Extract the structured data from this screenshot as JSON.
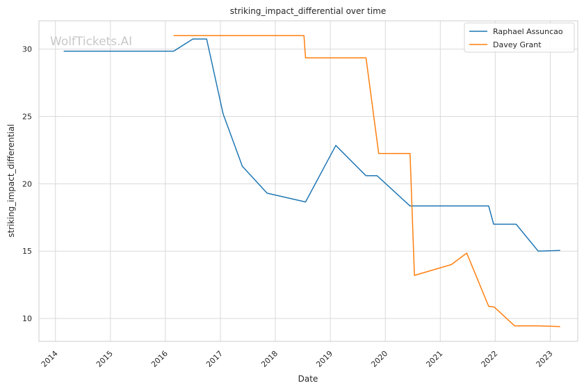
{
  "chart_data": {
    "type": "line",
    "title": "striking_impact_differential over time",
    "xlabel": "Date",
    "ylabel": "striking_impact_differential",
    "watermark": "WolfTickets.AI",
    "xlim": [
      2013.7,
      2023.5
    ],
    "ylim": [
      8.3,
      32.1
    ],
    "x_ticks": [
      2014,
      2015,
      2016,
      2017,
      2018,
      2019,
      2020,
      2021,
      2022,
      2023
    ],
    "x_tick_labels": [
      "2014",
      "2015",
      "2016",
      "2017",
      "2018",
      "2019",
      "2020",
      "2021",
      "2022",
      "2023"
    ],
    "y_ticks": [
      10,
      15,
      20,
      25,
      30
    ],
    "y_tick_labels": [
      "10",
      "15",
      "20",
      "25",
      "30"
    ],
    "grid": true,
    "legend_position": "top-right",
    "series": [
      {
        "name": "Raphael Assuncao",
        "color": "#1f77b4",
        "points": [
          [
            2014.15,
            29.85
          ],
          [
            2016.15,
            29.85
          ],
          [
            2016.5,
            30.75
          ],
          [
            2016.75,
            30.75
          ],
          [
            2017.05,
            25.2
          ],
          [
            2017.4,
            21.3
          ],
          [
            2017.85,
            19.3
          ],
          [
            2018.55,
            18.65
          ],
          [
            2019.1,
            22.85
          ],
          [
            2019.65,
            20.6
          ],
          [
            2019.85,
            20.6
          ],
          [
            2020.45,
            18.35
          ],
          [
            2021.15,
            18.35
          ],
          [
            2021.88,
            18.35
          ],
          [
            2021.97,
            17.0
          ],
          [
            2022.38,
            17.0
          ],
          [
            2022.78,
            15.0
          ],
          [
            2023.18,
            15.05
          ]
        ]
      },
      {
        "name": "Davey Grant",
        "color": "#ff7f0e",
        "points": [
          [
            2016.15,
            31.0
          ],
          [
            2018.52,
            31.0
          ],
          [
            2018.55,
            29.35
          ],
          [
            2019.65,
            29.35
          ],
          [
            2019.88,
            22.25
          ],
          [
            2020.45,
            22.25
          ],
          [
            2020.53,
            13.2
          ],
          [
            2021.2,
            14.0
          ],
          [
            2021.48,
            14.85
          ],
          [
            2021.88,
            10.9
          ],
          [
            2021.98,
            10.85
          ],
          [
            2022.35,
            9.45
          ],
          [
            2022.78,
            9.45
          ],
          [
            2023.18,
            9.4
          ]
        ]
      }
    ]
  }
}
